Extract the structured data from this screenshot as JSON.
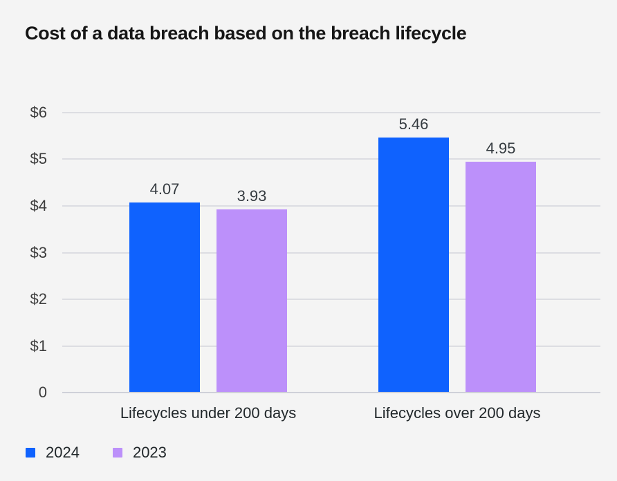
{
  "chart": {
    "title": "Cost of a data breach based on the breach lifecycle"
  },
  "colors": {
    "background": "#f4f4f4",
    "series_2024": "#0f62fe",
    "series_2023": "#bc90fa",
    "title_text": "#161616",
    "tick_text": "#3d3d3d",
    "label_text": "#21272a",
    "gridline": "#dcdde2",
    "axis_baseline": "#cfd0d8"
  },
  "chart_data": {
    "type": "bar",
    "title": "Cost of a data breach based on the breach lifecycle",
    "categories": [
      "Lifecycles under 200 days",
      "Lifecycles over 200 days"
    ],
    "series": [
      {
        "name": "2024",
        "color": "#0f62fe",
        "values": [
          4.07,
          5.46
        ],
        "value_labels": [
          "4.07",
          "5.46"
        ]
      },
      {
        "name": "2023",
        "color": "#bc90fa",
        "values": [
          3.93,
          4.95
        ],
        "value_labels": [
          "3.93",
          "4.95"
        ]
      }
    ],
    "xlabel": "",
    "ylabel": "",
    "ylim": [
      0,
      6
    ],
    "y_ticks": [
      {
        "value": 6,
        "label": "$6"
      },
      {
        "value": 5,
        "label": "$5"
      },
      {
        "value": 4,
        "label": "$4"
      },
      {
        "value": 3,
        "label": "$3"
      },
      {
        "value": 2,
        "label": "$2"
      },
      {
        "value": 1,
        "label": "$1"
      },
      {
        "value": 0,
        "label": "0"
      }
    ],
    "grid": "horizontal",
    "legend_position": "bottom-left",
    "legend_entries": [
      "2024",
      "2023"
    ]
  }
}
